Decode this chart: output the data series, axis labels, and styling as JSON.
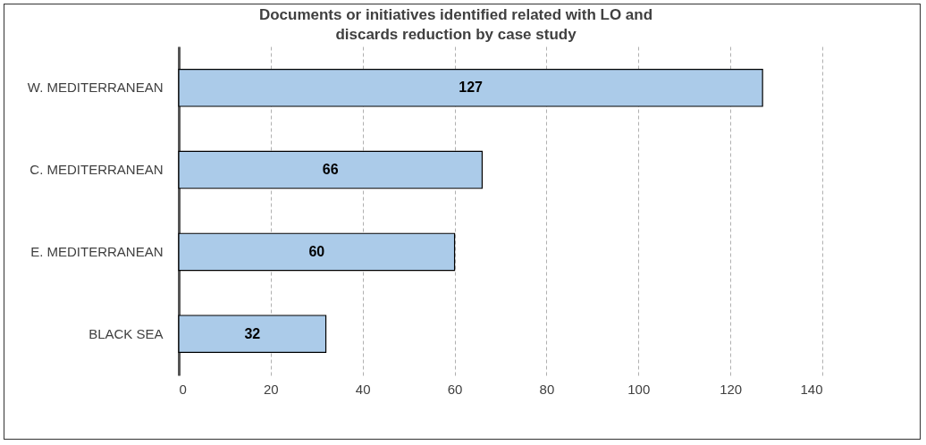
{
  "chart_data": {
    "type": "bar",
    "orientation": "horizontal",
    "title": "Documents or initiatives identified related with LO and discards reduction by case study",
    "categories": [
      "W. MEDITERRANEAN",
      "C. MEDITERRANEAN",
      "E. MEDITERRANEAN",
      "BLACK SEA"
    ],
    "values": [
      127,
      66,
      60,
      32
    ],
    "color": "#abcbe9",
    "data_labels": true,
    "xlim": [
      0,
      140
    ],
    "xticks": [
      0,
      20,
      40,
      60,
      80,
      100,
      120,
      140
    ],
    "grid": "x"
  }
}
